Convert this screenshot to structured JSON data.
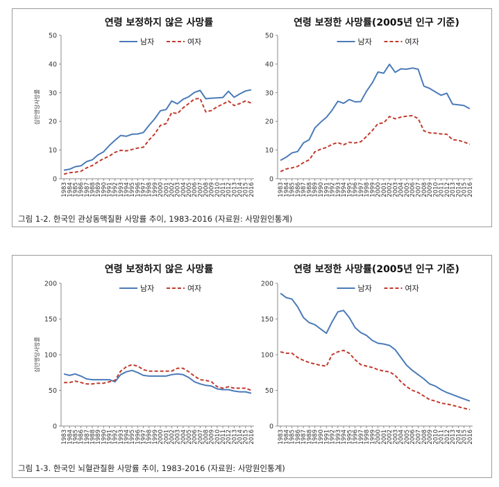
{
  "figures": [
    {
      "caption": "그림 1-2. 한국인 관상동맥질환 사망률 추이, 1983-2016 (자료원: 사망원인통계)",
      "ylabel": "십만명당사망률",
      "charts": [
        {
          "title": "연령 보정하지 않은 사망률",
          "type": "line",
          "ylim": [
            0,
            50
          ],
          "yticks": [
            0,
            10,
            20,
            30,
            40,
            50
          ]
        },
        {
          "title": "연령 보정한 사망률(2005년 인구 기준)",
          "type": "line",
          "ylim": [
            0,
            50
          ],
          "yticks": [
            0,
            10,
            20,
            30,
            40,
            50
          ]
        }
      ]
    },
    {
      "caption": "그림 1-3. 한국인 뇌혈관질환 사망률 추이, 1983-2016 (자료원: 사망원인통계)",
      "ylabel": "십만명당사망률",
      "charts": [
        {
          "title": "연령 보정하지 않은 사망률",
          "type": "line",
          "ylim": [
            0,
            200
          ],
          "yticks": [
            0,
            50,
            100,
            150,
            200
          ]
        },
        {
          "title": "연령 보정한 사망률(2005년 인구 기준)",
          "type": "line",
          "ylim": [
            0,
            200
          ],
          "yticks": [
            0,
            50,
            100,
            150,
            200
          ]
        }
      ]
    }
  ],
  "legend": {
    "male": "남자",
    "female": "여자",
    "male_color": "#4a7ab8",
    "female_color": "#c0392b"
  },
  "chart_data": [
    {
      "figure": 0,
      "type": "line",
      "title": "연령 보정하지 않은 사망률",
      "ylim": [
        0,
        50
      ],
      "x": [
        1983,
        1984,
        1985,
        1986,
        1987,
        1988,
        1989,
        1990,
        1991,
        1992,
        1993,
        1994,
        1995,
        1996,
        1997,
        1998,
        1999,
        2000,
        2001,
        2002,
        2003,
        2004,
        2005,
        2006,
        2007,
        2008,
        2009,
        2010,
        2011,
        2012,
        2013,
        2014,
        2015,
        2016
      ],
      "series": [
        {
          "name": "남자",
          "values": [
            3,
            3.3,
            4.2,
            4.5,
            6,
            6.6,
            8.3,
            9.4,
            11.6,
            13.4,
            15.1,
            14.8,
            15.5,
            15.6,
            16.1,
            18.6,
            20.9,
            23.7,
            24.1,
            27.1,
            26.1,
            27.7,
            28.6,
            30.1,
            30.8,
            27.9,
            28.1,
            28.2,
            28.3,
            30.5,
            28.4,
            29.6,
            30.6,
            31
          ]
        },
        {
          "name": "여자",
          "values": [
            1.6,
            2.1,
            2.3,
            2.6,
            3.8,
            4.6,
            5.9,
            7,
            7.9,
            9.2,
            9.9,
            9.7,
            10.2,
            10.7,
            11,
            13.5,
            15.6,
            18.6,
            19.2,
            23.1,
            22.7,
            24.7,
            26.2,
            27.8,
            28,
            23.3,
            23.8,
            25.1,
            26,
            27.1,
            25.5,
            26.2,
            27.1,
            26.4
          ]
        }
      ]
    },
    {
      "figure": 0,
      "type": "line",
      "title": "연령 보정한 사망률(2005년 인구 기준)",
      "ylim": [
        0,
        50
      ],
      "x": [
        1983,
        1984,
        1985,
        1986,
        1987,
        1988,
        1989,
        1990,
        1991,
        1992,
        1993,
        1994,
        1995,
        1996,
        1997,
        1998,
        1999,
        2000,
        2001,
        2002,
        2003,
        2004,
        2005,
        2006,
        2007,
        2008,
        2009,
        2010,
        2011,
        2012,
        2013,
        2014,
        2015,
        2016
      ],
      "series": [
        {
          "name": "남자",
          "values": [
            6.4,
            7.5,
            9,
            9.5,
            12.5,
            13.6,
            17.7,
            19.7,
            21.4,
            23.9,
            27,
            26.3,
            27.6,
            26.8,
            26.9,
            30.5,
            33.4,
            37.2,
            36.8,
            39.9,
            37.1,
            38.3,
            38.2,
            38.6,
            38.2,
            32.3,
            31.5,
            30.3,
            29.1,
            29.8,
            26,
            25.8,
            25.5,
            24.4
          ]
        },
        {
          "name": "여자",
          "values": [
            2.5,
            3.4,
            3.8,
            4.3,
            5.6,
            6.6,
            9.4,
            10.3,
            10.9,
            12,
            12.6,
            11.8,
            12.7,
            12.5,
            12.9,
            14.7,
            16.8,
            19.2,
            19.5,
            21.7,
            20.9,
            21.5,
            21.8,
            22,
            21,
            16.7,
            16,
            15.9,
            15.6,
            15.5,
            13.6,
            13.4,
            12.8,
            12
          ]
        }
      ]
    },
    {
      "figure": 1,
      "type": "line",
      "title": "연령 보정하지 않은 사망률",
      "ylim": [
        0,
        200
      ],
      "x": [
        1983,
        1984,
        1985,
        1986,
        1987,
        1988,
        1989,
        1990,
        1991,
        1992,
        1993,
        1994,
        1995,
        1996,
        1997,
        1998,
        1999,
        2000,
        2001,
        2002,
        2003,
        2004,
        2005,
        2006,
        2007,
        2008,
        2009,
        2010,
        2011,
        2012,
        2013,
        2014,
        2015,
        2016
      ],
      "series": [
        {
          "name": "남자",
          "values": [
            73,
            71,
            73,
            70,
            66,
            65,
            65,
            65,
            65,
            62,
            72,
            76,
            78,
            75,
            71,
            70,
            70,
            70,
            70,
            72,
            73,
            72,
            68,
            62,
            59,
            57,
            56,
            52,
            51,
            51,
            49,
            48,
            48,
            46
          ]
        },
        {
          "name": "여자",
          "values": [
            61,
            61,
            63,
            61,
            59,
            59,
            60,
            60,
            62,
            64,
            77,
            83,
            86,
            84,
            79,
            77,
            77,
            77,
            77,
            77,
            81,
            81,
            76,
            70,
            65,
            64,
            62,
            55,
            53,
            55,
            53,
            53,
            53,
            50
          ]
        }
      ]
    },
    {
      "figure": 1,
      "type": "line",
      "title": "연령 보정한 사망률(2005년 인구 기준)",
      "ylim": [
        0,
        200
      ],
      "x": [
        1983,
        1984,
        1985,
        1986,
        1987,
        1988,
        1989,
        1990,
        1991,
        1992,
        1993,
        1994,
        1995,
        1996,
        1997,
        1998,
        1999,
        2000,
        2001,
        2002,
        2003,
        2004,
        2005,
        2006,
        2007,
        2008,
        2009,
        2010,
        2011,
        2012,
        2013,
        2014,
        2015,
        2016
      ],
      "series": [
        {
          "name": "남자",
          "values": [
            186,
            180,
            178,
            167,
            152,
            145,
            142,
            136,
            130,
            146,
            160,
            162,
            152,
            138,
            131,
            127,
            120,
            116,
            115,
            113,
            107,
            96,
            85,
            78,
            72,
            66,
            59,
            56,
            51,
            47,
            44,
            41,
            38,
            35
          ]
        },
        {
          "name": "여자",
          "values": [
            104,
            102,
            102,
            96,
            92,
            89,
            87,
            85,
            84,
            100,
            104,
            106,
            102,
            93,
            86,
            84,
            82,
            79,
            77,
            76,
            71,
            62,
            55,
            50,
            47,
            42,
            37,
            35,
            32,
            31,
            29,
            27,
            25,
            23
          ]
        }
      ]
    }
  ]
}
